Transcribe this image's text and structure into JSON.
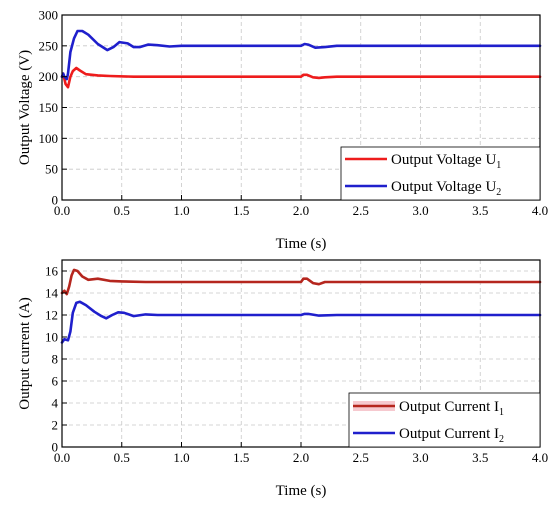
{
  "chart_data": [
    {
      "type": "line",
      "xlabel": "Time (s)",
      "ylabel": "Output Voltage (V)",
      "xlim": [
        0,
        4.0
      ],
      "ylim": [
        0,
        300
      ],
      "xticks": [
        "0.0",
        "0.5",
        "1.0",
        "1.5",
        "2.0",
        "2.5",
        "3.0",
        "3.5",
        "4.0"
      ],
      "yticks": [
        "0",
        "50",
        "100",
        "150",
        "200",
        "250",
        "300"
      ],
      "grid": true,
      "legend_position": "bottom-right",
      "series": [
        {
          "name": "Output Voltage U",
          "subscript": "1",
          "color": "#ee1c1c",
          "points": [
            [
              0,
              200
            ],
            [
              0.01,
              205
            ],
            [
              0.02,
              196
            ],
            [
              0.03,
              188
            ],
            [
              0.05,
              183
            ],
            [
              0.07,
              200
            ],
            [
              0.09,
              209
            ],
            [
              0.12,
              214
            ],
            [
              0.15,
              210
            ],
            [
              0.2,
              204
            ],
            [
              0.25,
              203
            ],
            [
              0.3,
              202
            ],
            [
              0.4,
              201
            ],
            [
              0.6,
              200
            ],
            [
              1.0,
              200
            ],
            [
              1.5,
              200
            ],
            [
              2.0,
              200
            ],
            [
              2.02,
              203
            ],
            [
              2.05,
              203
            ],
            [
              2.1,
              199
            ],
            [
              2.15,
              198
            ],
            [
              2.2,
              199
            ],
            [
              2.3,
              200
            ],
            [
              2.5,
              200
            ],
            [
              3.0,
              200
            ],
            [
              4.0,
              200
            ]
          ]
        },
        {
          "name": "Output Voltage U",
          "subscript": "2",
          "color": "#1f1fcc",
          "points": [
            [
              0,
              200
            ],
            [
              0.01,
              205
            ],
            [
              0.02,
              200
            ],
            [
              0.04,
              196
            ],
            [
              0.05,
              205
            ],
            [
              0.07,
              240
            ],
            [
              0.1,
              262
            ],
            [
              0.13,
              274
            ],
            [
              0.17,
              274
            ],
            [
              0.22,
              268
            ],
            [
              0.3,
              253
            ],
            [
              0.38,
              243
            ],
            [
              0.43,
              248
            ],
            [
              0.48,
              256
            ],
            [
              0.55,
              254
            ],
            [
              0.6,
              248
            ],
            [
              0.65,
              248
            ],
            [
              0.72,
              252
            ],
            [
              0.8,
              251
            ],
            [
              0.9,
              249
            ],
            [
              1.0,
              250
            ],
            [
              1.5,
              250
            ],
            [
              2.0,
              250
            ],
            [
              2.03,
              253
            ],
            [
              2.06,
              252
            ],
            [
              2.12,
              247
            ],
            [
              2.2,
              248
            ],
            [
              2.3,
              250
            ],
            [
              2.5,
              250
            ],
            [
              3.0,
              250
            ],
            [
              4.0,
              250
            ]
          ]
        }
      ]
    },
    {
      "type": "line",
      "xlabel": "Time (s)",
      "ylabel": "Output current (A)",
      "xlim": [
        0,
        4.0
      ],
      "ylim": [
        0,
        17
      ],
      "xticks": [
        "0.0",
        "0.5",
        "1.0",
        "1.5",
        "2.0",
        "2.5",
        "3.0",
        "3.5",
        "4.0"
      ],
      "yticks": [
        "0",
        "2",
        "4",
        "6",
        "8",
        "10",
        "12",
        "14",
        "16"
      ],
      "grid": true,
      "legend_position": "bottom-right",
      "series": [
        {
          "name": "Output Current I",
          "subscript": "1",
          "color": "#b5261e",
          "points": [
            [
              0,
              14.0
            ],
            [
              0.02,
              14.2
            ],
            [
              0.04,
              13.9
            ],
            [
              0.06,
              14.6
            ],
            [
              0.08,
              15.6
            ],
            [
              0.1,
              16.1
            ],
            [
              0.13,
              16.0
            ],
            [
              0.17,
              15.5
            ],
            [
              0.22,
              15.2
            ],
            [
              0.3,
              15.3
            ],
            [
              0.4,
              15.1
            ],
            [
              0.5,
              15.05
            ],
            [
              0.7,
              15.0
            ],
            [
              1.0,
              15.0
            ],
            [
              1.5,
              15.0
            ],
            [
              2.0,
              15.0
            ],
            [
              2.02,
              15.3
            ],
            [
              2.05,
              15.3
            ],
            [
              2.1,
              14.9
            ],
            [
              2.15,
              14.8
            ],
            [
              2.2,
              15.0
            ],
            [
              2.3,
              15.0
            ],
            [
              3.0,
              15.0
            ],
            [
              4.0,
              15.0
            ]
          ]
        },
        {
          "name": "Output Current I",
          "subscript": "2",
          "color": "#1f1fcc",
          "points": [
            [
              0,
              9.5
            ],
            [
              0.02,
              9.8
            ],
            [
              0.05,
              9.7
            ],
            [
              0.07,
              10.5
            ],
            [
              0.09,
              12.2
            ],
            [
              0.12,
              13.1
            ],
            [
              0.15,
              13.2
            ],
            [
              0.2,
              12.9
            ],
            [
              0.27,
              12.3
            ],
            [
              0.33,
              11.9
            ],
            [
              0.37,
              11.7
            ],
            [
              0.42,
              12.0
            ],
            [
              0.47,
              12.25
            ],
            [
              0.52,
              12.2
            ],
            [
              0.6,
              11.9
            ],
            [
              0.7,
              12.05
            ],
            [
              0.8,
              12.0
            ],
            [
              1.0,
              12.0
            ],
            [
              2.0,
              12.0
            ],
            [
              2.03,
              12.1
            ],
            [
              2.06,
              12.1
            ],
            [
              2.15,
              11.95
            ],
            [
              2.3,
              12.0
            ],
            [
              3.0,
              12.0
            ],
            [
              4.0,
              12.0
            ]
          ]
        }
      ]
    }
  ]
}
